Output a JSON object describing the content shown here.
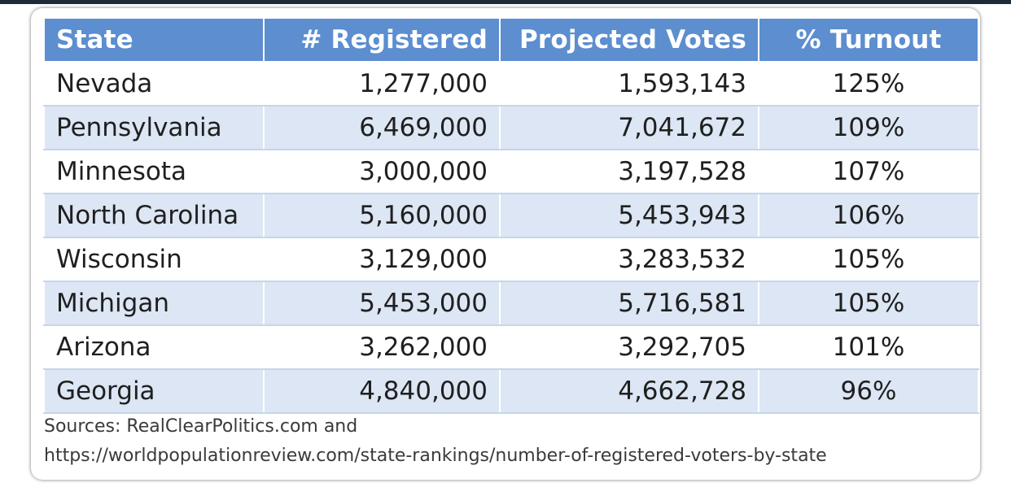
{
  "chart_data": {
    "type": "table",
    "columns": [
      "State",
      "# Registered",
      "Projected Votes",
      "% Turnout"
    ],
    "rows": [
      {
        "state": "Nevada",
        "registered": "1,277,000",
        "projected": "1,593,143",
        "turnout": "125%"
      },
      {
        "state": "Pennsylvania",
        "registered": "6,469,000",
        "projected": "7,041,672",
        "turnout": "109%"
      },
      {
        "state": "Minnesota",
        "registered": "3,000,000",
        "projected": "3,197,528",
        "turnout": "107%"
      },
      {
        "state": "North Carolina",
        "registered": "5,160,000",
        "projected": "5,453,943",
        "turnout": "106%"
      },
      {
        "state": "Wisconsin",
        "registered": "3,129,000",
        "projected": "3,283,532",
        "turnout": "105%"
      },
      {
        "state": "Michigan",
        "registered": "5,453,000",
        "projected": "5,716,581",
        "turnout": "105%"
      },
      {
        "state": "Arizona",
        "registered": "3,262,000",
        "projected": "3,292,705",
        "turnout": "101%"
      },
      {
        "state": "Georgia",
        "registered": "4,840,000",
        "projected": "4,662,728",
        "turnout": "96%"
      }
    ],
    "header_color": "#5c8ed0",
    "stripe_color": "#dce6f4"
  },
  "sources": {
    "line1": "Sources: RealClearPolitics.com and",
    "line2": "https://worldpopulationreview.com/state-rankings/number-of-registered-voters-by-state"
  }
}
